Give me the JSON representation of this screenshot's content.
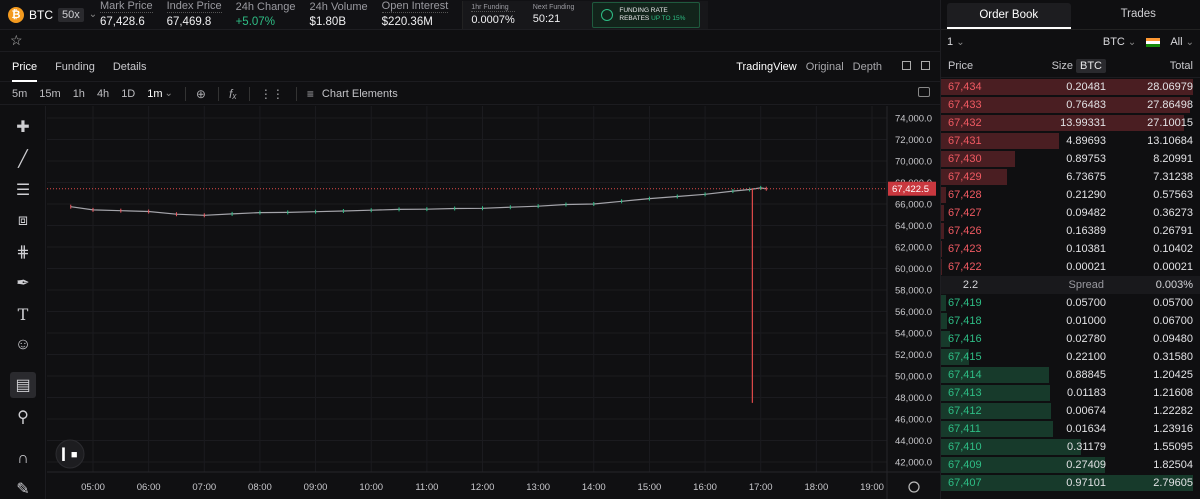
{
  "header": {
    "asset_symbol": "BTC",
    "coin_glyph": "₿",
    "leverage": "50x",
    "stats": [
      {
        "label": "Mark Price",
        "value": "67,428.6",
        "tone": "neutral"
      },
      {
        "label": "Index Price",
        "value": "67,469.8",
        "tone": "neutral"
      },
      {
        "label": "24h Change",
        "value": "+5.07%",
        "tone": "positive"
      },
      {
        "label": "24h Volume",
        "value": "$1.80B",
        "tone": "neutral"
      },
      {
        "label": "Open Interest",
        "value": "$220.36M",
        "tone": "neutral"
      }
    ],
    "funding": {
      "hour_label": "1hr Funding",
      "hour_value": "0.0007%",
      "next_label": "Next Funding",
      "next_value": "50:21"
    },
    "rebate": {
      "line1": "FUNDING RATE",
      "line2_prefix": "REBATES",
      "line2_highlight": "UP TO 15%"
    }
  },
  "tabs": {
    "price": "Price",
    "funding": "Funding",
    "details": "Details",
    "tradingview": "TradingView",
    "original": "Original",
    "depth": "Depth"
  },
  "chart_toolbar": {
    "intervals": [
      "5m",
      "15m",
      "1h",
      "4h",
      "1D",
      "1m"
    ],
    "active_interval": "1m",
    "chart_elements": "Chart Elements"
  },
  "chart_data": {
    "type": "line",
    "title": "",
    "xlabel": "",
    "ylabel": "",
    "x_ticks": [
      "05:00",
      "06:00",
      "07:00",
      "08:00",
      "09:00",
      "10:00",
      "11:00",
      "12:00",
      "13:00",
      "14:00",
      "15:00",
      "16:00",
      "17:00",
      "18:00",
      "19:00"
    ],
    "y_ticks": [
      "74,000.0",
      "72,000.0",
      "70,000.0",
      "68,000.0",
      "66,000.0",
      "64,000.0",
      "62,000.0",
      "60,000.0",
      "58,000.0",
      "56,000.0",
      "54,000.0",
      "52,000.0",
      "50,000.0",
      "48,000.0",
      "46,000.0",
      "44,000.0",
      "42,000.0"
    ],
    "ylim": [
      41000,
      75000
    ],
    "x_hours": [
      4.6,
      5.0,
      5.5,
      6.0,
      6.5,
      7.0,
      7.5,
      8.0,
      8.5,
      9.0,
      9.5,
      10.0,
      10.5,
      11.0,
      11.5,
      12.0,
      12.5,
      13.0,
      13.5,
      14.0,
      14.5,
      15.0,
      15.5,
      16.0,
      16.5,
      16.8,
      17.0,
      17.1
    ],
    "close": [
      65750,
      65450,
      65380,
      65300,
      65050,
      64950,
      65080,
      65200,
      65220,
      65280,
      65350,
      65420,
      65500,
      65520,
      65580,
      65600,
      65700,
      65800,
      65950,
      66000,
      66250,
      66500,
      66700,
      66900,
      67200,
      67350,
      67500,
      67422
    ],
    "wick": {
      "hour": 16.85,
      "low": 47500,
      "high": 67450
    },
    "current_price": "67,422.5",
    "current_value": 67422.5
  },
  "orderbook": {
    "tab_orderbook": "Order Book",
    "tab_trades": "Trades",
    "grouping": "1",
    "unit": "BTC",
    "filter": "All",
    "col_price": "Price",
    "col_size": "Size",
    "col_size_unit": "BTC",
    "col_total": "Total",
    "asks": [
      {
        "price": "67,434",
        "size": "0.20481",
        "total": "28.06979",
        "depth": 1.0
      },
      {
        "price": "67,433",
        "size": "0.76483",
        "total": "27.86498",
        "depth": 0.99
      },
      {
        "price": "67,432",
        "size": "13.99331",
        "total": "27.10015",
        "depth": 0.965
      },
      {
        "price": "67,431",
        "size": "4.89693",
        "total": "13.10684",
        "depth": 0.467
      },
      {
        "price": "67,430",
        "size": "0.89753",
        "total": "8.20991",
        "depth": 0.292
      },
      {
        "price": "67,429",
        "size": "6.73675",
        "total": "7.31238",
        "depth": 0.26
      },
      {
        "price": "67,428",
        "size": "0.21290",
        "total": "0.57563",
        "depth": 0.02
      },
      {
        "price": "67,427",
        "size": "0.09482",
        "total": "0.36273",
        "depth": 0.013
      },
      {
        "price": "67,426",
        "size": "0.16389",
        "total": "0.26791",
        "depth": 0.01
      },
      {
        "price": "67,423",
        "size": "0.10381",
        "total": "0.10402",
        "depth": 0.004
      },
      {
        "price": "67,422",
        "size": "0.00021",
        "total": "0.00021",
        "depth": 0.001
      }
    ],
    "spread": {
      "value": "2.2",
      "label": "Spread",
      "percent": "0.003%"
    },
    "bids": [
      {
        "price": "67,419",
        "size": "0.05700",
        "total": "0.05700",
        "depth": 0.02
      },
      {
        "price": "67,418",
        "size": "0.01000",
        "total": "0.06700",
        "depth": 0.024
      },
      {
        "price": "67,416",
        "size": "0.02780",
        "total": "0.09480",
        "depth": 0.034
      },
      {
        "price": "67,415",
        "size": "0.22100",
        "total": "0.31580",
        "depth": 0.113
      },
      {
        "price": "67,414",
        "size": "0.88845",
        "total": "1.20425",
        "depth": 0.43
      },
      {
        "price": "67,413",
        "size": "0.01183",
        "total": "1.21608",
        "depth": 0.434
      },
      {
        "price": "67,412",
        "size": "0.00674",
        "total": "1.22282",
        "depth": 0.437
      },
      {
        "price": "67,411",
        "size": "0.01634",
        "total": "1.23916",
        "depth": 0.443
      },
      {
        "price": "67,410",
        "size": "0.31179",
        "total": "1.55095",
        "depth": 0.554
      },
      {
        "price": "67,409",
        "size": "0.27409",
        "total": "1.82504",
        "depth": 0.652
      },
      {
        "price": "67,407",
        "size": "0.97101",
        "total": "2.79605",
        "depth": 1.0
      }
    ]
  },
  "colors": {
    "ask": "#f05a62",
    "bid": "#2ebd85",
    "price_line": "#e04a4a",
    "candle": "#9a9aa0"
  }
}
